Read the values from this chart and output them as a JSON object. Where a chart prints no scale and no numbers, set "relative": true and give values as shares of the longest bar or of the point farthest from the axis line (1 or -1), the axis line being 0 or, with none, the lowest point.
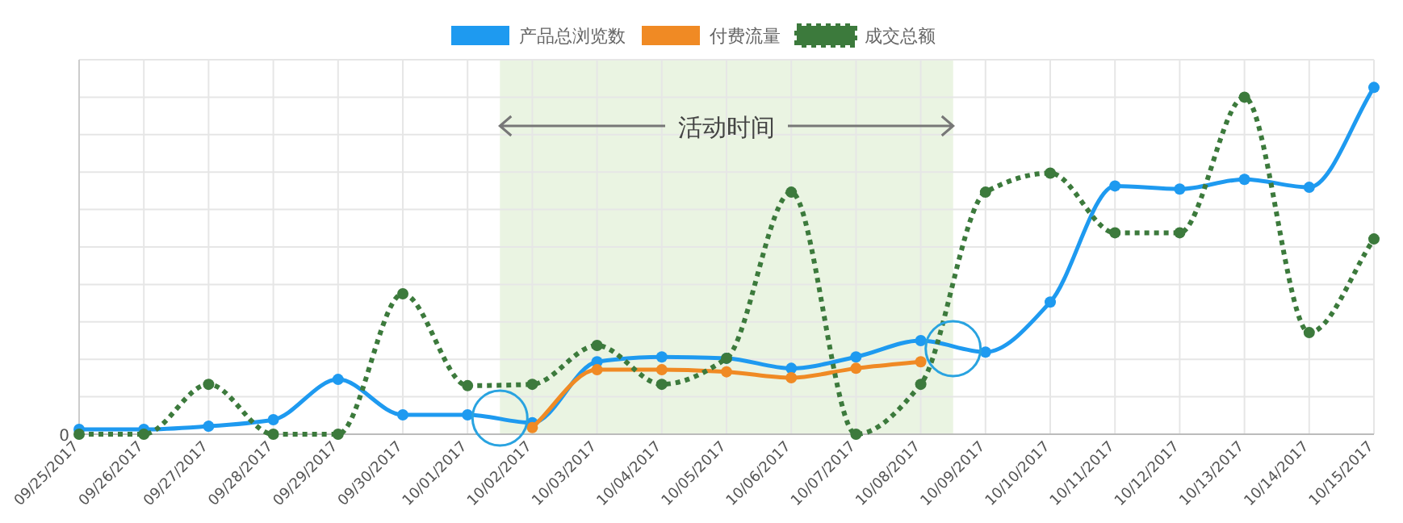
{
  "chart_data": {
    "type": "line",
    "relative": true,
    "x": [
      "2017-09-25",
      "2017-09-26",
      "2017-09-27",
      "2017-09-28",
      "2017-09-29",
      "2017-09-30",
      "2017-10-01",
      "2017-10-02",
      "2017-10-03",
      "2017-10-04",
      "2017-10-05",
      "2017-10-06",
      "2017-10-07",
      "2017-10-08",
      "2017-10-09",
      "2017-10-10",
      "2017-10-11",
      "2017-10-12",
      "2017-10-13",
      "2017-10-14",
      "2017-10-15"
    ],
    "series": [
      {
        "name": "产品总浏览数",
        "color": "#1e9af0",
        "line_style": "solid",
        "values": [
          0.014,
          0.014,
          0.023,
          0.042,
          0.158,
          0.056,
          0.056,
          0.033,
          0.209,
          0.223,
          0.219,
          0.19,
          0.223,
          0.27,
          0.237,
          0.381,
          0.716,
          0.707,
          0.735,
          0.712,
          1.0
        ]
      },
      {
        "name": "付费流量",
        "color": "#f08a24",
        "line_style": "solid",
        "values": [
          null,
          null,
          null,
          null,
          null,
          null,
          null,
          0.019,
          0.186,
          0.186,
          0.18,
          0.163,
          0.19,
          0.209,
          null,
          null,
          null,
          null,
          null,
          null,
          null
        ]
      },
      {
        "name": "成交总额",
        "color": "#3c7a3c",
        "line_style": "dotted",
        "values": [
          0,
          0,
          0.144,
          0,
          0,
          0.405,
          0.14,
          0.144,
          0.256,
          0.144,
          0.219,
          0.698,
          0,
          0.144,
          0.698,
          0.753,
          0.581,
          0.581,
          0.972,
          0.293,
          0.563
        ]
      }
    ],
    "bands": [
      {
        "axis": "x",
        "from": "2017-10-01T12:00",
        "to": "2017-10-08T12:00",
        "label": "活动时间",
        "color": "#eaf4e2"
      }
    ],
    "annotations": [
      "0"
    ],
    "xlim": [
      "2017-09-25",
      "2017-10-15"
    ],
    "xticks": [
      {
        "value": "2017-09-25",
        "label": "09/25/2017"
      },
      {
        "value": "2017-09-26",
        "label": "09/26/2017"
      },
      {
        "value": "2017-09-27",
        "label": "09/27/2017"
      },
      {
        "value": "2017-09-28",
        "label": "09/28/2017"
      },
      {
        "value": "2017-09-29",
        "label": "09/29/2017"
      },
      {
        "value": "2017-09-30",
        "label": "09/30/2017"
      },
      {
        "value": "2017-10-01",
        "label": "10/01/2017"
      },
      {
        "value": "2017-10-02",
        "label": "10/02/2017"
      },
      {
        "value": "2017-10-03",
        "label": "10/03/2017"
      },
      {
        "value": "2017-10-04",
        "label": "10/04/2017"
      },
      {
        "value": "2017-10-05",
        "label": "10/05/2017"
      },
      {
        "value": "2017-10-06",
        "label": "10/06/2017"
      },
      {
        "value": "2017-10-07",
        "label": "10/07/2017"
      },
      {
        "value": "2017-10-08",
        "label": "10/08/2017"
      },
      {
        "value": "2017-10-09",
        "label": "10/09/2017"
      },
      {
        "value": "2017-10-10",
        "label": "10/10/2017"
      },
      {
        "value": "2017-10-11",
        "label": "10/11/2017"
      },
      {
        "value": "2017-10-12",
        "label": "10/12/2017"
      },
      {
        "value": "2017-10-13",
        "label": "10/13/2017"
      },
      {
        "value": "2017-10-14",
        "label": "10/14/2017"
      },
      {
        "value": "2017-10-15",
        "label": "10/15/2017"
      }
    ],
    "marker": "circle",
    "grid": true,
    "legend": "top"
  }
}
